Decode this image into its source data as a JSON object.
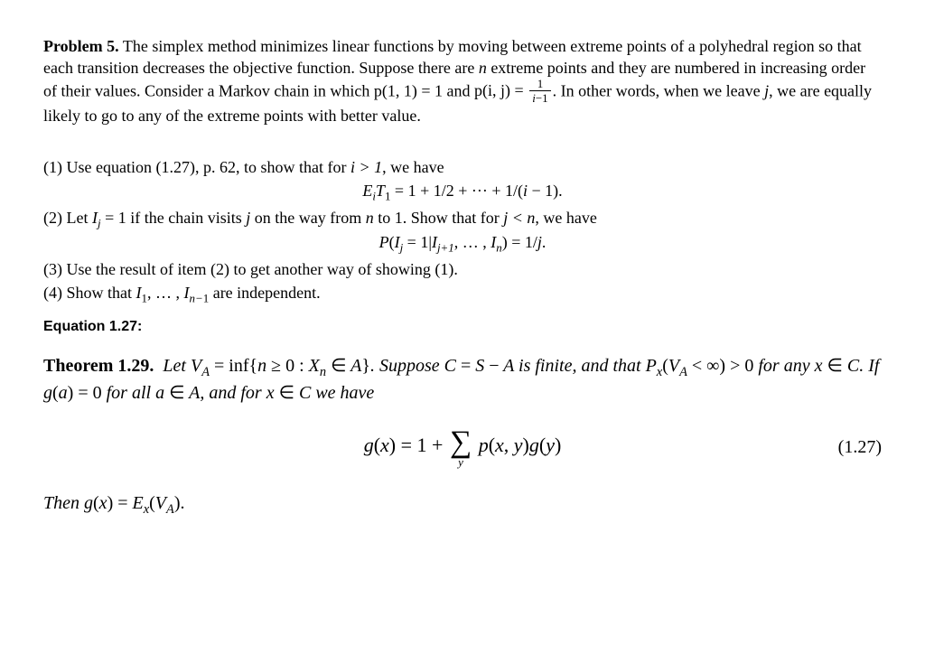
{
  "problem": {
    "title": "Problem 5.",
    "text1": " The simplex method minimizes linear functions by moving between extreme points of a polyhedral region so that each transition decreases the objective function. Suppose there are ",
    "n": "n",
    "text2": " extreme points and they are numbered in increasing order of their values. Consider a Markov chain in which ",
    "p11": "p(1, 1) = 1",
    "text3": " and ",
    "pij_lhs": "p(i, j) = ",
    "frac_num": "1",
    "frac_den": "i−1",
    "text4": ". In other words, when we leave ",
    "j": "j",
    "text5": ", we are equally likely to go to any of the extreme points with better value."
  },
  "parts": {
    "p1_label": "(1) ",
    "p1_text1": "Use equation (1.27), p. 62, to show that for ",
    "p1_cond": "i > 1",
    "p1_text2": ", we have",
    "p1_eq": "E_i T_1 = 1 + 1/2 + ··· + 1/(i − 1).",
    "p2_label": "(2) ",
    "p2_text1": "Let ",
    "p2_Ij": "I_j = 1",
    "p2_text2": " if the chain visits ",
    "p2_j": "j",
    "p2_text3": " on the way from ",
    "p2_n": "n",
    "p2_text4": " to 1. Show that for ",
    "p2_cond": "j < n",
    "p2_text5": ", we have",
    "p2_eq": "P(I_j = 1 | I_{j+1}, … , I_n) = 1/j.",
    "p3_label": "(3) ",
    "p3_text": "Use the result of item (2) to get another way of showing (1).",
    "p4_label": "(4) ",
    "p4_text1": "Show that ",
    "p4_vars": "I_1, … , I_{n−1}",
    "p4_text2": " are independent."
  },
  "eq_header": "Equation 1.27:",
  "theorem": {
    "head": "Theorem 1.29.",
    "t1": "  Let V",
    "t1b": " = inf{n ≥ 0 : X",
    "t1c": " ∈ A}. Suppose C = S − A is finite, and that P",
    "t1d": "(V",
    "t1e": " < ∞) > 0 for any x ∈ C. If g(a) = 0 for all a ∈ A, and for x ∈ C we have",
    "eq_lhs": "g(x) = 1 + ",
    "eq_sumvar": "y",
    "eq_rhs": " p(x, y)g(y)",
    "eq_num": "(1.27)",
    "concl": "Then g(x) = E",
    "concl2": "(V",
    "concl3": ")."
  }
}
